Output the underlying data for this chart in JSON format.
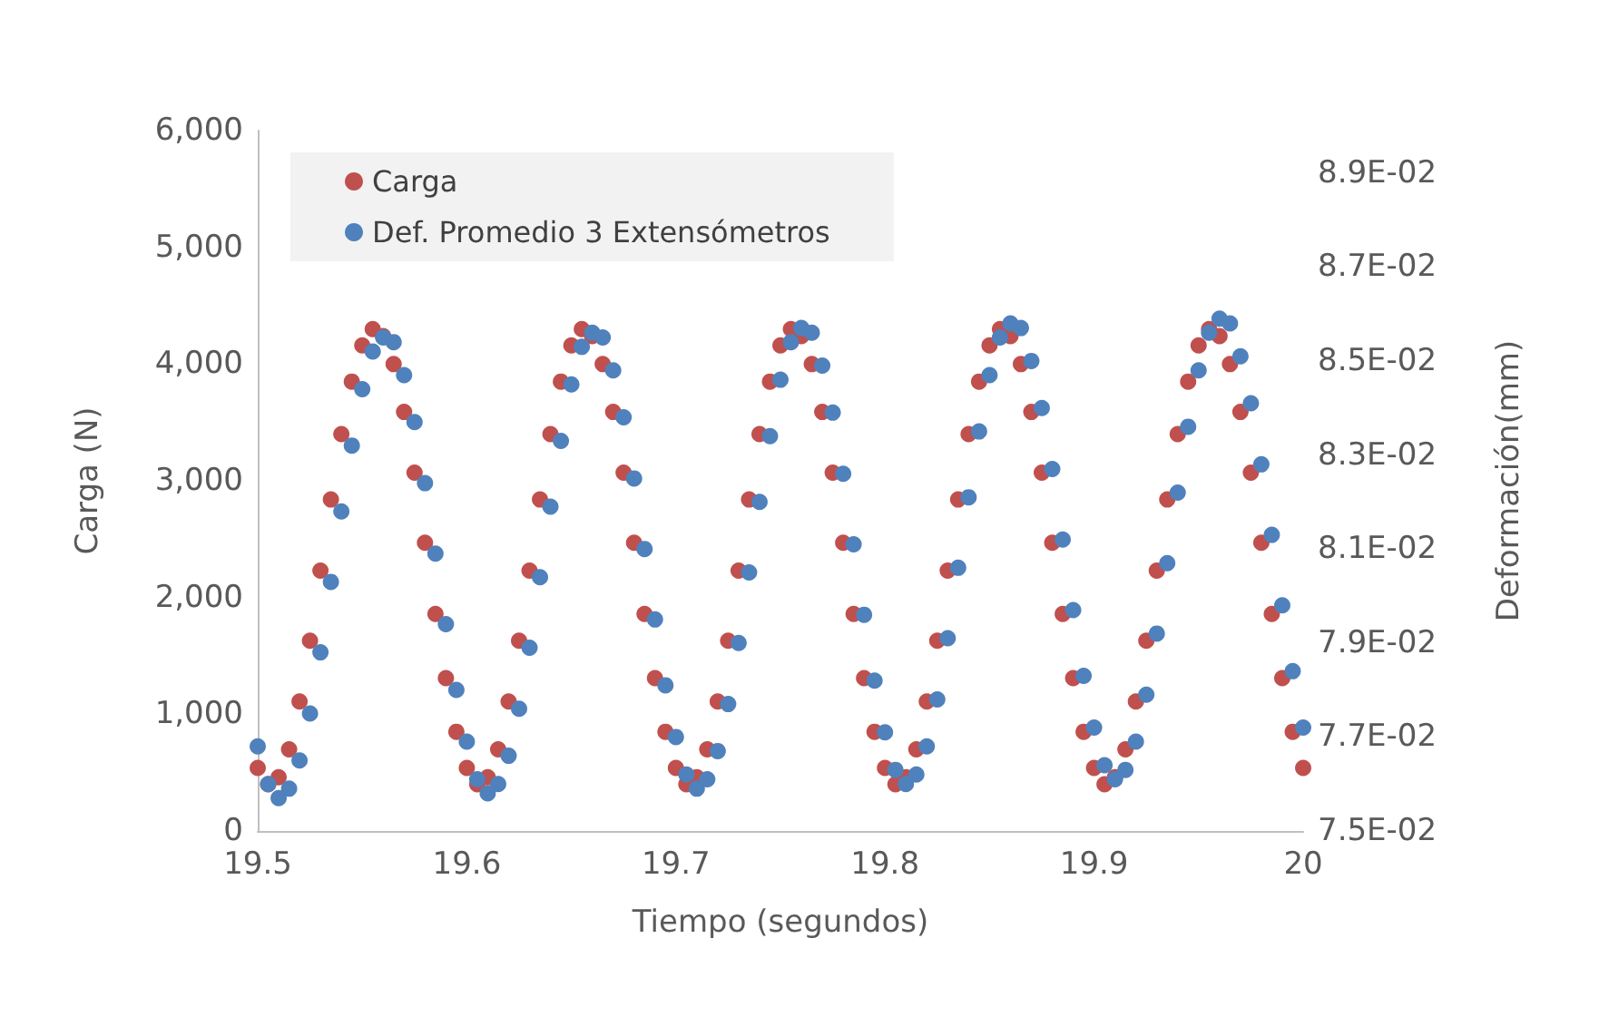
{
  "chart_data": {
    "type": "scatter",
    "xlabel": "Tiempo (segundos)",
    "ylabel": "Carga (N)",
    "y2label": "Deformación(mm)",
    "legend": "top left",
    "marker": "circle",
    "grid": false,
    "x": [
      19.5,
      19.505,
      19.51,
      19.515,
      19.52,
      19.525,
      19.53,
      19.535,
      19.54,
      19.545,
      19.55,
      19.555,
      19.56,
      19.565,
      19.57,
      19.575,
      19.58,
      19.585,
      19.59,
      19.595,
      19.6,
      19.605,
      19.61,
      19.615,
      19.62,
      19.625,
      19.63,
      19.635,
      19.64,
      19.645,
      19.65,
      19.655,
      19.66,
      19.665,
      19.67,
      19.675,
      19.68,
      19.685,
      19.69,
      19.695,
      19.7,
      19.705,
      19.71,
      19.715,
      19.72,
      19.725,
      19.73,
      19.735,
      19.74,
      19.745,
      19.75,
      19.755,
      19.76,
      19.765,
      19.77,
      19.775,
      19.78,
      19.785,
      19.79,
      19.795,
      19.8,
      19.805,
      19.81,
      19.815,
      19.82,
      19.825,
      19.83,
      19.835,
      19.84,
      19.845,
      19.85,
      19.855,
      19.86,
      19.865,
      19.87,
      19.875,
      19.88,
      19.885,
      19.89,
      19.895,
      19.9,
      19.905,
      19.91,
      19.915,
      19.92,
      19.925,
      19.93,
      19.935,
      19.94,
      19.945,
      19.95,
      19.955,
      19.96,
      19.965,
      19.97,
      19.975,
      19.98,
      19.985,
      19.99,
      19.995,
      20
    ],
    "series": [
      {
        "name": "Carga",
        "color": "#c0504d",
        "values": [
          540,
          400,
          460,
          700,
          1110,
          1630,
          2230,
          2840,
          3400,
          3850,
          4160,
          4300,
          4240,
          4000,
          3590,
          3070,
          2470,
          1860,
          1310,
          850,
          540,
          400,
          460,
          700,
          1110,
          1630,
          2230,
          2840,
          3400,
          3850,
          4160,
          4300,
          4240,
          4000,
          3590,
          3070,
          2470,
          1860,
          1310,
          850,
          540,
          400,
          460,
          700,
          1110,
          1630,
          2230,
          2840,
          3400,
          3850,
          4160,
          4300,
          4240,
          4000,
          3590,
          3070,
          2470,
          1860,
          1310,
          850,
          540,
          400,
          460,
          700,
          1110,
          1630,
          2230,
          2840,
          3400,
          3850,
          4160,
          4300,
          4240,
          4000,
          3590,
          3070,
          2470,
          1860,
          1310,
          850,
          540,
          400,
          460,
          700,
          1110,
          1630,
          2230,
          2840,
          3400,
          3850,
          4160,
          4300,
          4240,
          4000,
          3590,
          3070,
          2470,
          1860,
          1310,
          850,
          540
        ]
      },
      {
        "name": "Def. Promedio 3 Extensómetros",
        "color": "#4f81bd",
        "axis": "y2",
        "values": [
          0.0768,
          0.076,
          0.0757,
          0.0759,
          0.0765,
          0.0775,
          0.0788,
          0.0803,
          0.0818,
          0.0832,
          0.0844,
          0.0852,
          0.0855,
          0.0854,
          0.0847,
          0.0837,
          0.0824,
          0.0809,
          0.0794,
          0.078,
          0.0769,
          0.0761,
          0.0758,
          0.076,
          0.0766,
          0.0776,
          0.0789,
          0.0804,
          0.0819,
          0.0833,
          0.0845,
          0.0853,
          0.0856,
          0.0855,
          0.0848,
          0.0838,
          0.0825,
          0.081,
          0.0795,
          0.0781,
          0.077,
          0.0762,
          0.0759,
          0.0761,
          0.0767,
          0.0777,
          0.079,
          0.0805,
          0.082,
          0.0834,
          0.0846,
          0.0854,
          0.0857,
          0.0856,
          0.0849,
          0.0839,
          0.0826,
          0.0811,
          0.0796,
          0.0782,
          0.0771,
          0.0763,
          0.076,
          0.0762,
          0.0768,
          0.0778,
          0.0791,
          0.0806,
          0.0821,
          0.0835,
          0.0847,
          0.0855,
          0.0858,
          0.0857,
          0.085,
          0.084,
          0.0827,
          0.0812,
          0.0797,
          0.0783,
          0.0772,
          0.0764,
          0.0761,
          0.0763,
          0.0769,
          0.0779,
          0.0792,
          0.0807,
          0.0822,
          0.0836,
          0.0848,
          0.0856,
          0.0859,
          0.0858,
          0.0851,
          0.0841,
          0.0828,
          0.0813,
          0.0798,
          0.0784,
          0.0772
        ]
      }
    ],
    "xlim": [
      19.5,
      20
    ],
    "xticks": [
      19.5,
      19.6,
      19.7,
      19.8,
      19.9,
      20
    ],
    "ylim": [
      0,
      6000
    ],
    "yticks": [
      0,
      {
        "value": 1000,
        "label": "1,000"
      },
      {
        "value": 2000,
        "label": "2,000"
      },
      {
        "value": 3000,
        "label": "3,000"
      },
      {
        "value": 4000,
        "label": "4,000"
      },
      {
        "value": 5000,
        "label": "5,000"
      },
      {
        "value": 6000,
        "label": "6,000"
      }
    ],
    "y2lim": [
      0.075,
      0.0899
    ],
    "y2ticks": [
      {
        "value": 0.075,
        "label": "7.5E-02"
      },
      {
        "value": 0.077,
        "label": "7.7E-02"
      },
      {
        "value": 0.079,
        "label": "7.9E-02"
      },
      {
        "value": 0.081,
        "label": "8.1E-02"
      },
      {
        "value": 0.083,
        "label": "8.3E-02"
      },
      {
        "value": 0.085,
        "label": "8.5E-02"
      },
      {
        "value": 0.087,
        "label": "8.7E-02"
      },
      {
        "value": 0.089,
        "label": "8.9E-02"
      }
    ]
  }
}
